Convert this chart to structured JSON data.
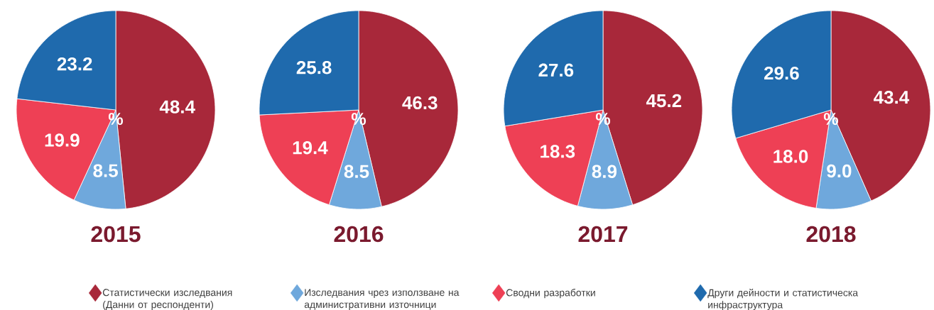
{
  "chart_data": [
    {
      "type": "pie",
      "title": "2015",
      "categories": [
        "Статистически изследвания (Данни от респонденти)",
        "Изследвания чрез използване на административни източници",
        "Сводни разработки",
        "Други дейности и статистическа инфраструктура"
      ],
      "values": [
        48.4,
        8.5,
        19.9,
        23.2
      ],
      "colors": [
        "#a8283a",
        "#6fa8dc",
        "#ee4055",
        "#1f6aad"
      ],
      "data_labels": true,
      "annotations": [
        "%"
      ],
      "legend": "bottom"
    },
    {
      "type": "pie",
      "title": "2016",
      "values": [
        46.3,
        8.5,
        19.4,
        25.8
      ],
      "colors": [
        "#a8283a",
        "#6fa8dc",
        "#ee4055",
        "#1f6aad"
      ],
      "data_labels": true,
      "annotations": [
        "%"
      ]
    },
    {
      "type": "pie",
      "title": "2017",
      "values": [
        45.2,
        8.9,
        18.3,
        27.6
      ],
      "colors": [
        "#a8283a",
        "#6fa8dc",
        "#ee4055",
        "#1f6aad"
      ],
      "data_labels": true,
      "annotations": [
        "%"
      ]
    },
    {
      "type": "pie",
      "title": "2018",
      "values": [
        43.4,
        9.0,
        18.0,
        29.6
      ],
      "value_labels": [
        "43.4",
        "9.0",
        "18.0",
        "29.6"
      ],
      "colors": [
        "#a8283a",
        "#6fa8dc",
        "#ee4055",
        "#1f6aad"
      ],
      "annotations": [
        "%"
      ]
    }
  ]
}
